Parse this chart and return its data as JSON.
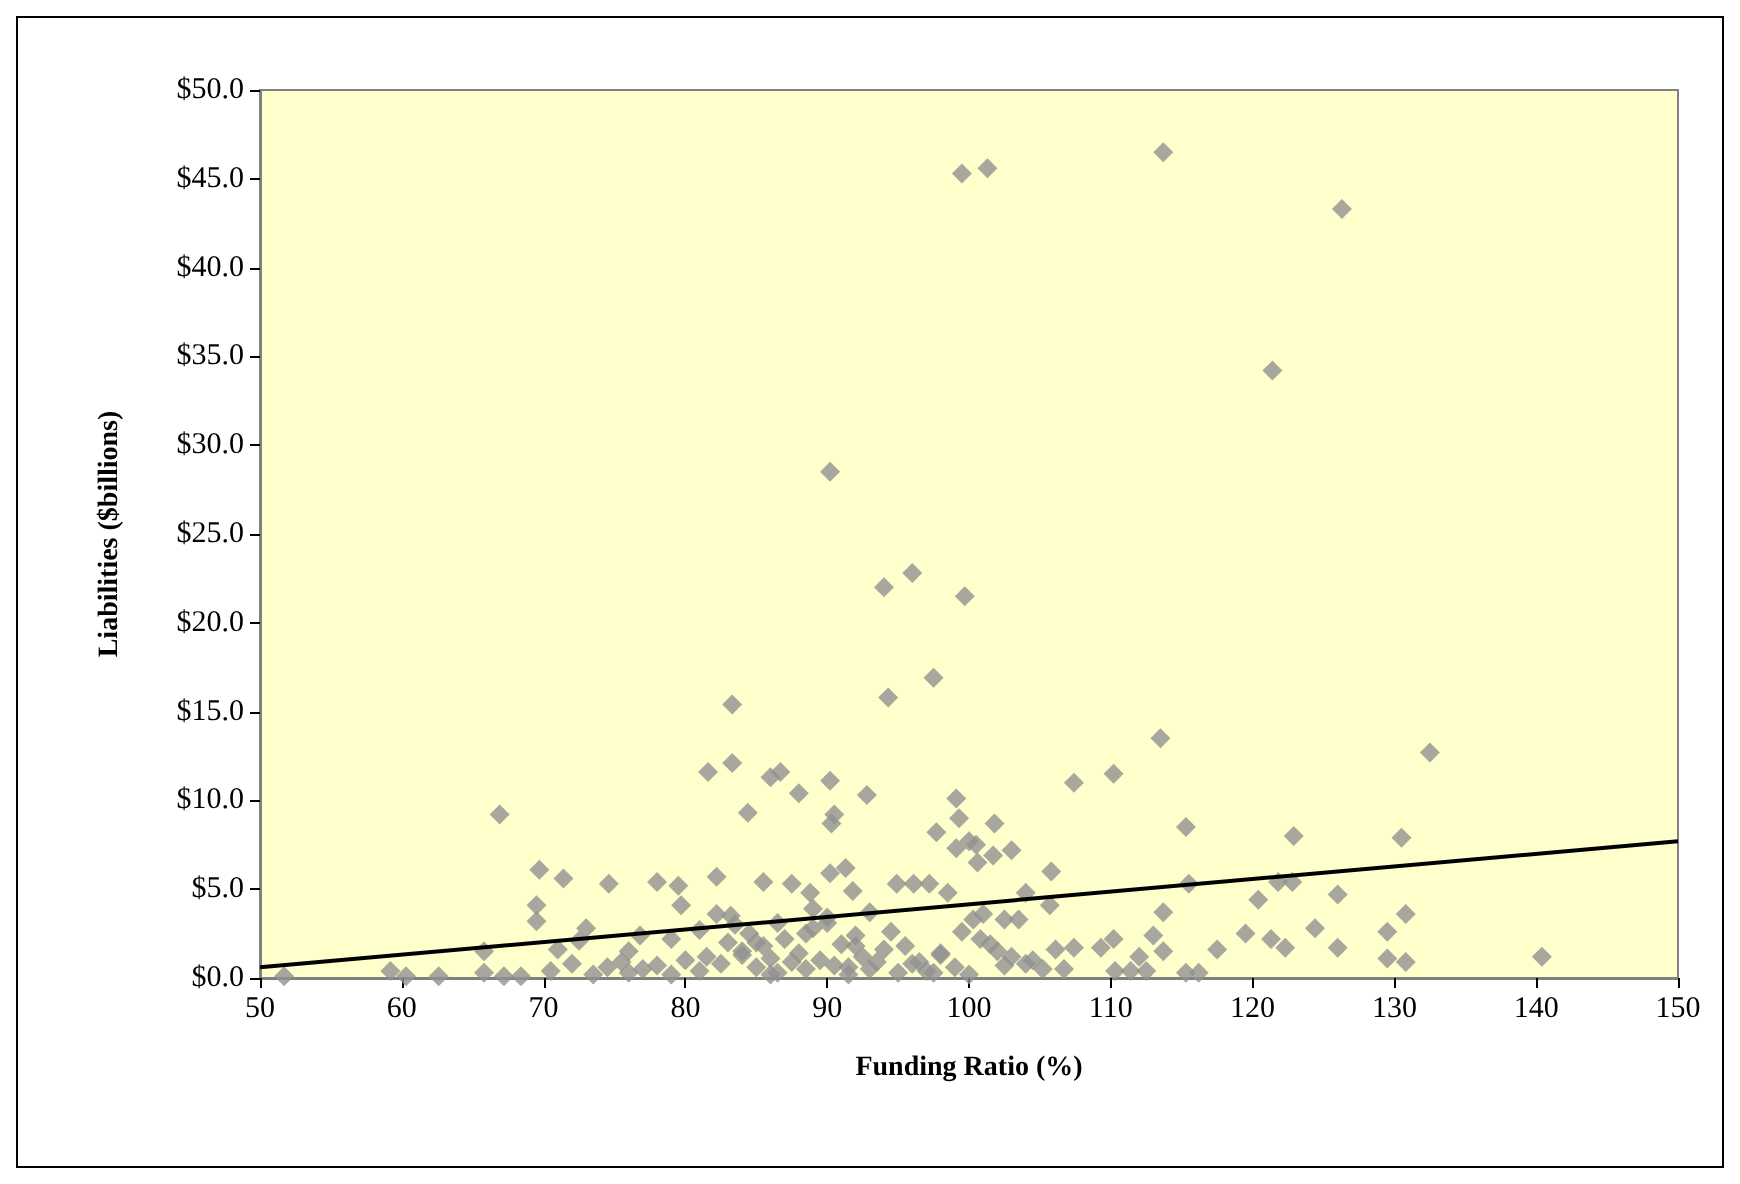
{
  "chart_data": {
    "type": "scatter",
    "xlabel": "Funding Ratio (%)",
    "ylabel": "Liabilities ($billions)",
    "xlim": [
      50,
      150
    ],
    "xticks": [
      50,
      60,
      70,
      80,
      90,
      100,
      110,
      120,
      130,
      140,
      150
    ],
    "ylim": [
      0,
      50
    ],
    "yticks": [
      {
        "value": 0,
        "label": "$0.0"
      },
      {
        "value": 5,
        "label": "$5.0"
      },
      {
        "value": 10,
        "label": "$10.0"
      },
      {
        "value": 15,
        "label": "$15.0"
      },
      {
        "value": 20,
        "label": "$20.0"
      },
      {
        "value": 25,
        "label": "$25.0"
      },
      {
        "value": 30,
        "label": "$30.0"
      },
      {
        "value": 35,
        "label": "$35.0"
      },
      {
        "value": 40,
        "label": "$40.0"
      },
      {
        "value": 45,
        "label": "$45.0"
      },
      {
        "value": 50,
        "label": "$50.0"
      }
    ],
    "grid": false,
    "series": [
      {
        "color": "#919191",
        "marker": "diamond",
        "x": [
          99.5,
          101.3,
          113.7,
          126.3,
          121.4,
          90.2,
          96.0,
          94.0,
          99.7,
          97.5,
          94.3,
          83.3,
          113.5,
          132.5,
          83.3,
          81.6,
          86.0,
          86.7,
          88.0,
          90.2,
          90.3,
          90.5,
          92.8,
          107.4,
          110.2,
          99.1,
          97.7,
          99.3,
          99.1,
          100.0,
          115.3,
          122.9,
          130.5,
          84.4,
          66.9,
          101.8,
          100.5,
          103.0,
          101.7,
          100.6,
          105.8,
          69.7,
          71.4,
          74.6,
          78.0,
          79.5,
          82.2,
          85.5,
          87.5,
          88.8,
          90.2,
          91.3,
          91.8,
          94.9,
          96.1,
          97.2,
          98.5,
          115.5,
          120.4,
          121.8,
          122.8,
          126.0,
          113.7,
          119.5,
          121.3,
          122.3,
          124.4,
          126.0,
          129.5,
          130.8,
          129.5,
          130.8,
          140.4,
          117.5,
          115.3,
          116.2,
          113.0,
          113.7,
          112.0,
          110.2,
          109.3,
          110.3,
          111.4,
          112.5,
          107.4,
          106.1,
          105.7,
          105.2,
          106.7,
          51.7,
          59.2,
          60.3,
          62.6,
          65.8,
          65.8,
          67.2,
          68.4,
          69.5,
          69.5,
          71.0,
          72.5,
          76.8,
          79.7,
          82.2,
          83.2,
          100.3,
          101.0,
          102.5,
          104.0,
          103.5,
          100.8,
          102.0,
          103.0,
          104.0,
          70.5,
          72.0,
          73.5,
          74.5,
          75.5,
          76.0,
          77.0,
          78.0,
          79.0,
          80.0,
          81.0,
          81.5,
          82.5,
          83.0,
          84.0,
          84.5,
          85.0,
          85.5,
          86.0,
          86.5,
          87.0,
          87.5,
          88.0,
          88.5,
          89.0,
          89.5,
          90.0,
          90.5,
          91.0,
          91.5,
          92.0,
          92.5,
          93.0,
          93.5,
          94.0,
          95.0,
          96.0,
          97.0,
          98.0,
          99.0,
          100.0,
          101.5,
          73.0,
          76.0,
          79.0,
          81.0,
          83.5,
          85.0,
          86.5,
          88.5,
          90.0,
          92.0,
          94.5,
          96.5,
          98.0,
          84.0,
          86.0,
          89.0,
          91.5,
          93.0,
          95.5,
          97.5,
          99.5,
          102.5,
          104.5
        ],
        "values": [
          45.3,
          45.6,
          46.5,
          43.3,
          34.2,
          28.5,
          22.8,
          22.0,
          21.5,
          16.9,
          15.8,
          15.4,
          13.5,
          12.7,
          12.1,
          11.6,
          11.3,
          11.6,
          10.4,
          11.1,
          8.7,
          9.2,
          10.3,
          11.0,
          11.5,
          10.1,
          8.2,
          9.0,
          7.3,
          7.7,
          8.5,
          8.0,
          7.9,
          9.3,
          9.2,
          8.7,
          7.5,
          7.2,
          6.9,
          6.5,
          6.0,
          6.1,
          5.6,
          5.3,
          5.4,
          5.2,
          5.7,
          5.4,
          5.3,
          4.8,
          5.9,
          6.2,
          4.9,
          5.3,
          5.3,
          5.3,
          4.8,
          5.3,
          4.4,
          5.4,
          5.4,
          4.7,
          3.7,
          2.5,
          2.2,
          1.7,
          2.8,
          1.7,
          2.6,
          3.6,
          1.1,
          0.9,
          1.2,
          1.6,
          0.3,
          0.3,
          2.4,
          1.5,
          1.2,
          2.2,
          1.7,
          0.4,
          0.4,
          0.4,
          1.7,
          1.6,
          4.1,
          0.5,
          0.5,
          0.1,
          0.4,
          0.1,
          0.1,
          1.5,
          0.3,
          0.1,
          0.1,
          4.1,
          3.2,
          1.6,
          2.1,
          2.4,
          4.1,
          3.6,
          3.5,
          3.3,
          3.6,
          3.3,
          4.8,
          3.3,
          2.2,
          1.5,
          1.2,
          0.8,
          0.4,
          0.8,
          0.2,
          0.6,
          0.9,
          0.3,
          0.5,
          0.7,
          0.2,
          1.0,
          0.4,
          1.2,
          0.8,
          2.0,
          1.5,
          2.5,
          0.6,
          1.8,
          1.1,
          0.3,
          2.2,
          0.9,
          1.4,
          0.5,
          2.8,
          1.0,
          3.1,
          0.7,
          1.9,
          0.2,
          2.4,
          1.2,
          0.5,
          0.9,
          1.6,
          0.3,
          0.8,
          0.4,
          1.3,
          0.6,
          0.2,
          1.9,
          2.8,
          1.5,
          2.2,
          2.7,
          3.0,
          2.0,
          3.1,
          2.5,
          3.4,
          1.8,
          2.6,
          0.9,
          1.4,
          1.3,
          0.2,
          3.9,
          0.6,
          3.7,
          1.8,
          0.3,
          2.6,
          0.7,
          1.0
        ]
      },
      {
        "type": "line",
        "color": "#000000",
        "marker": "none",
        "line_style": "solid",
        "x": [
          50,
          150
        ],
        "values": [
          0.6,
          7.7
        ]
      }
    ]
  }
}
